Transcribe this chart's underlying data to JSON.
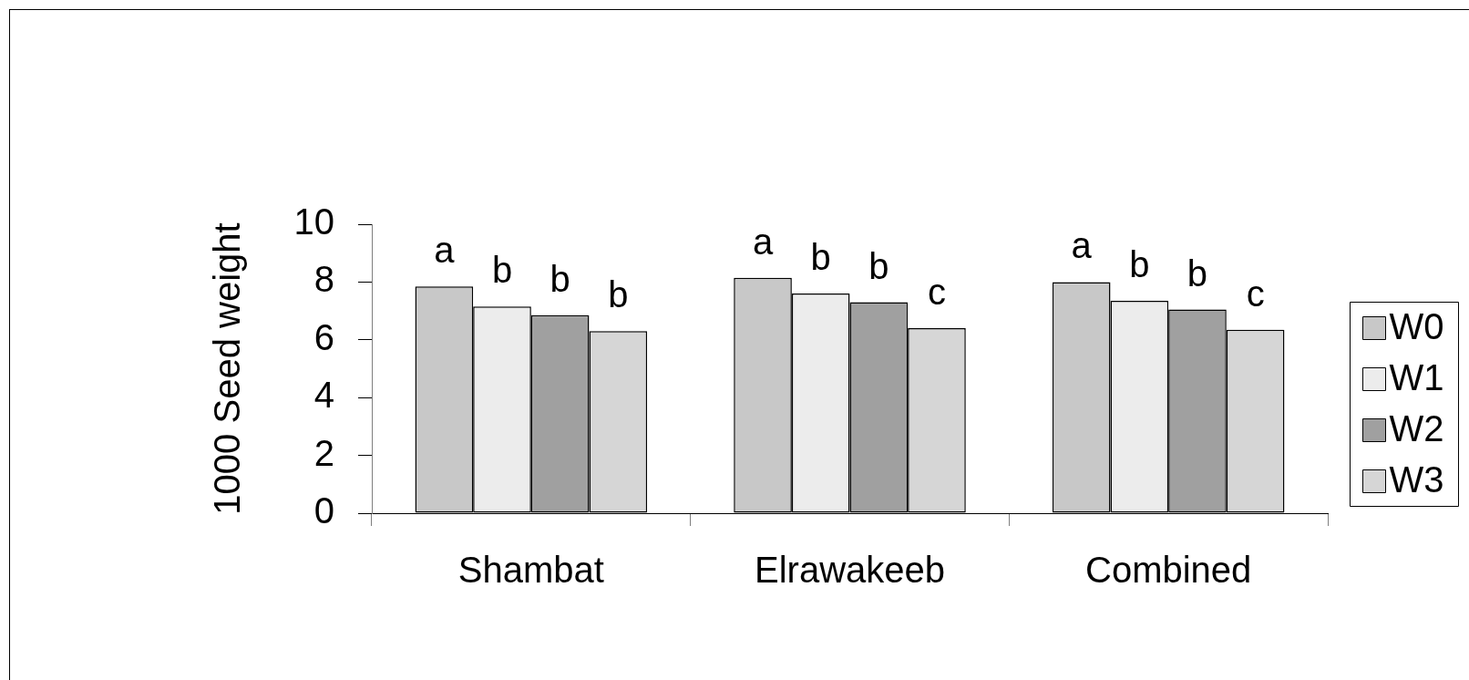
{
  "chart_data": {
    "type": "bar",
    "categories": [
      "Shambat",
      "Elrawakeeb",
      "Combined"
    ],
    "ylabel": "1000 Seed weight",
    "ylim": [
      0,
      10
    ],
    "yticks": [
      0,
      2,
      4,
      6,
      8,
      10
    ],
    "legend": "right",
    "series": [
      {
        "name": "W0",
        "color": "#c8c8c8",
        "values": [
          7.85,
          8.15,
          8.0
        ],
        "value_labels": [
          "a",
          "a",
          "a"
        ]
      },
      {
        "name": "W1",
        "color": "#ececec",
        "values": [
          7.15,
          7.6,
          7.35
        ],
        "value_labels": [
          "b",
          "b",
          "b"
        ]
      },
      {
        "name": "W2",
        "color": "#a0a0a0",
        "values": [
          6.85,
          7.3,
          7.05
        ],
        "value_labels": [
          "b",
          "b",
          "b"
        ]
      },
      {
        "name": "W3",
        "color": "#d6d6d6",
        "values": [
          6.3,
          6.4,
          6.35
        ],
        "value_labels": [
          "b",
          "c",
          "c"
        ]
      }
    ]
  }
}
